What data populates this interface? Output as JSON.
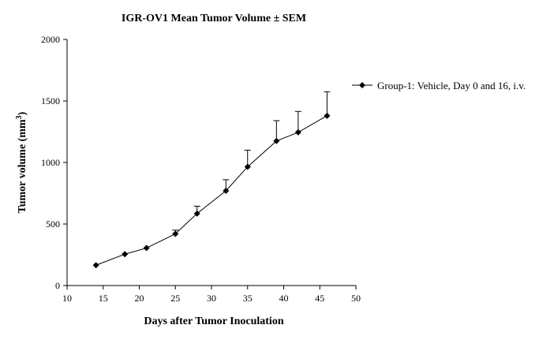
{
  "chart_data": {
    "type": "line",
    "title": "IGR-OV1 Mean Tumor Volume ± SEM",
    "xlabel": "Days after Tumor Inoculation",
    "ylabel": {
      "prefix": "Tumor volume (mm",
      "superscript": "3",
      "suffix": ")"
    },
    "xlim": [
      10,
      50
    ],
    "ylim": [
      0,
      2000
    ],
    "xticks": [
      "10",
      "15",
      "20",
      "25",
      "30",
      "35",
      "40",
      "45",
      "50"
    ],
    "yticks": [
      "0",
      "500",
      "1000",
      "1500",
      "2000"
    ],
    "grid": false,
    "legend_position": "right",
    "series": [
      {
        "name": "Group-1: Vehicle, Day 0 and 16, i.v.",
        "color": "#000000",
        "marker": "diamond",
        "x": [
          14,
          18,
          21,
          25,
          28,
          32,
          35,
          39,
          42,
          46
        ],
        "y": [
          165,
          255,
          305,
          420,
          585,
          770,
          965,
          1175,
          1245,
          1380
        ],
        "sem": [
          0,
          0,
          0,
          30,
          60,
          90,
          135,
          165,
          170,
          195
        ]
      }
    ]
  }
}
